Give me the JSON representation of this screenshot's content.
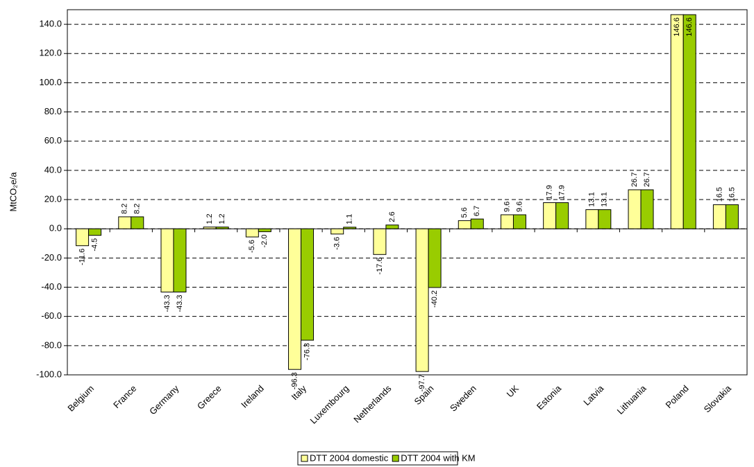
{
  "chart_data": {
    "type": "bar",
    "y_label": "MtCO₂e/a",
    "categories": [
      "Belgium",
      "France",
      "Germany",
      "Greece",
      "Ireland",
      "Italy",
      "Luxembourg",
      "Netherlands",
      "Spain",
      "Sweden",
      "UK",
      "Estonia",
      "Latvia",
      "Lithuania",
      "Poland",
      "Slovakia"
    ],
    "series": [
      {
        "name": "DTT 2004 domestic",
        "color": "#ffff99",
        "values": [
          -11.6,
          8.2,
          -43.3,
          1.2,
          -5.6,
          -96.3,
          -3.6,
          -17.6,
          -97.7,
          5.6,
          9.6,
          17.9,
          13.1,
          26.7,
          146.6,
          16.5
        ],
        "value_labels": [
          "-11.6",
          "8.2",
          "-43.3",
          "1.2",
          "-5.6",
          "-96.3",
          "-3.6",
          "-17.6",
          "-97.7",
          "5.6",
          "9.6",
          "17.9",
          "13.1",
          "26.7",
          "146.6",
          "16.5"
        ]
      },
      {
        "name": "DTT 2004 with KM",
        "color": "#99cc00",
        "values": [
          -4.5,
          8.2,
          -43.3,
          1.2,
          -2.0,
          -76.3,
          1.1,
          2.6,
          -40.2,
          6.7,
          9.6,
          17.9,
          13.1,
          26.7,
          146.6,
          16.5
        ],
        "value_labels": [
          "-4.5",
          "8.2",
          "-43.3",
          "1.2",
          "-2.0",
          "-76.3",
          "1.1",
          "2.6",
          "-40.2",
          "6.7",
          "9.6",
          "17.9",
          "13.1",
          "26.7",
          "146.6",
          "16.5"
        ]
      }
    ],
    "ylim": [
      -100,
      150
    ],
    "yticks": [
      {
        "value": -100,
        "label": "-100.0"
      },
      {
        "value": -80,
        "label": "-80.0"
      },
      {
        "value": -60,
        "label": "-60.0"
      },
      {
        "value": -40,
        "label": "-40.0"
      },
      {
        "value": -20,
        "label": "-20.0"
      },
      {
        "value": 0,
        "label": "0.0"
      },
      {
        "value": 20,
        "label": "20.0"
      },
      {
        "value": 40,
        "label": "40.0"
      },
      {
        "value": 60,
        "label": "60.0"
      },
      {
        "value": 80,
        "label": "80.0"
      },
      {
        "value": 100,
        "label": "100.0"
      },
      {
        "value": 120,
        "label": "120.0"
      },
      {
        "value": 140,
        "label": "140.0"
      }
    ],
    "grid": true
  }
}
